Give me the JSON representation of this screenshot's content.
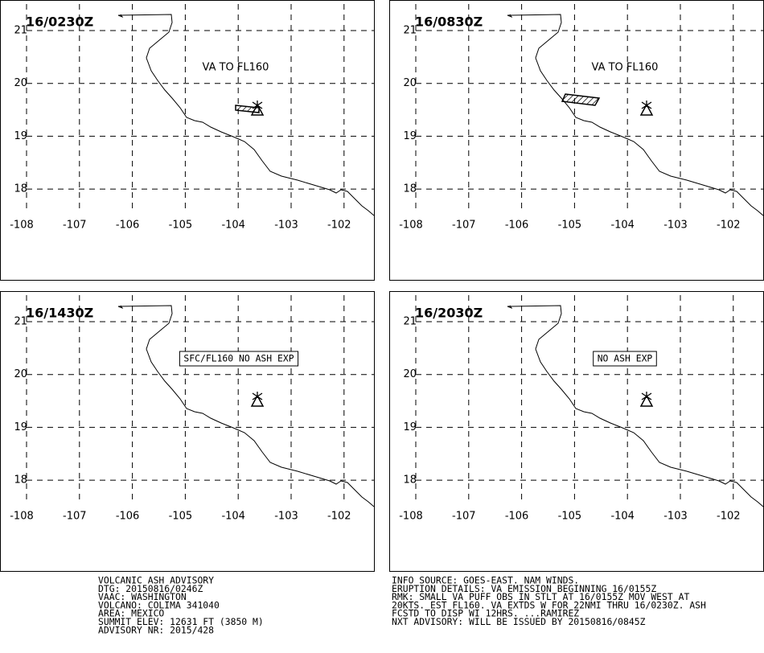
{
  "panels": [
    {
      "time": "16/0230Z",
      "annotation": "VA TO FL160",
      "boxed": false,
      "ash": "small"
    },
    {
      "time": "16/0830Z",
      "annotation": "VA TO FL160",
      "boxed": false,
      "ash": "large"
    },
    {
      "time": "16/1430Z",
      "annotation": "SFC/FL160 NO ASH EXP",
      "boxed": true,
      "ash": "none"
    },
    {
      "time": "16/2030Z",
      "annotation": "NO ASH EXP",
      "boxed": true,
      "ash": "none"
    }
  ],
  "lon_ticks": [
    -108,
    -107,
    -106,
    -105,
    -104,
    -103,
    -102
  ],
  "lat_ticks": [
    21,
    20,
    19,
    18
  ],
  "advisory_left": [
    "VOLCANIC ASH ADVISORY",
    "DTG: 20150816/0246Z",
    "VAAC: WASHINGTON",
    "VOLCANO: COLIMA 341040",
    "AREA: MEXICO",
    "SUMMIT ELEV: 12631 FT (3850 M)",
    "ADVISORY NR: 2015/428"
  ],
  "advisory_right": [
    "INFO SOURCE: GOES-EAST. NAM WINDS.",
    "ERUPTION DETAILS: VA EMISSION BEGINNING 16/0155Z",
    "RMK: SMALL VA PUFF OBS IN STLT AT 16/0155Z MOV WEST AT",
    "20KTS. EST FL160. VA EXTDS W FOR 22NMI THRU 16/0230Z. ASH",
    "FCSTD TO DISP WI 12HRS. ...RAMIREZ",
    "NXT ADVISORY: WILL BE ISSUED BY 20150816/0845Z"
  ]
}
